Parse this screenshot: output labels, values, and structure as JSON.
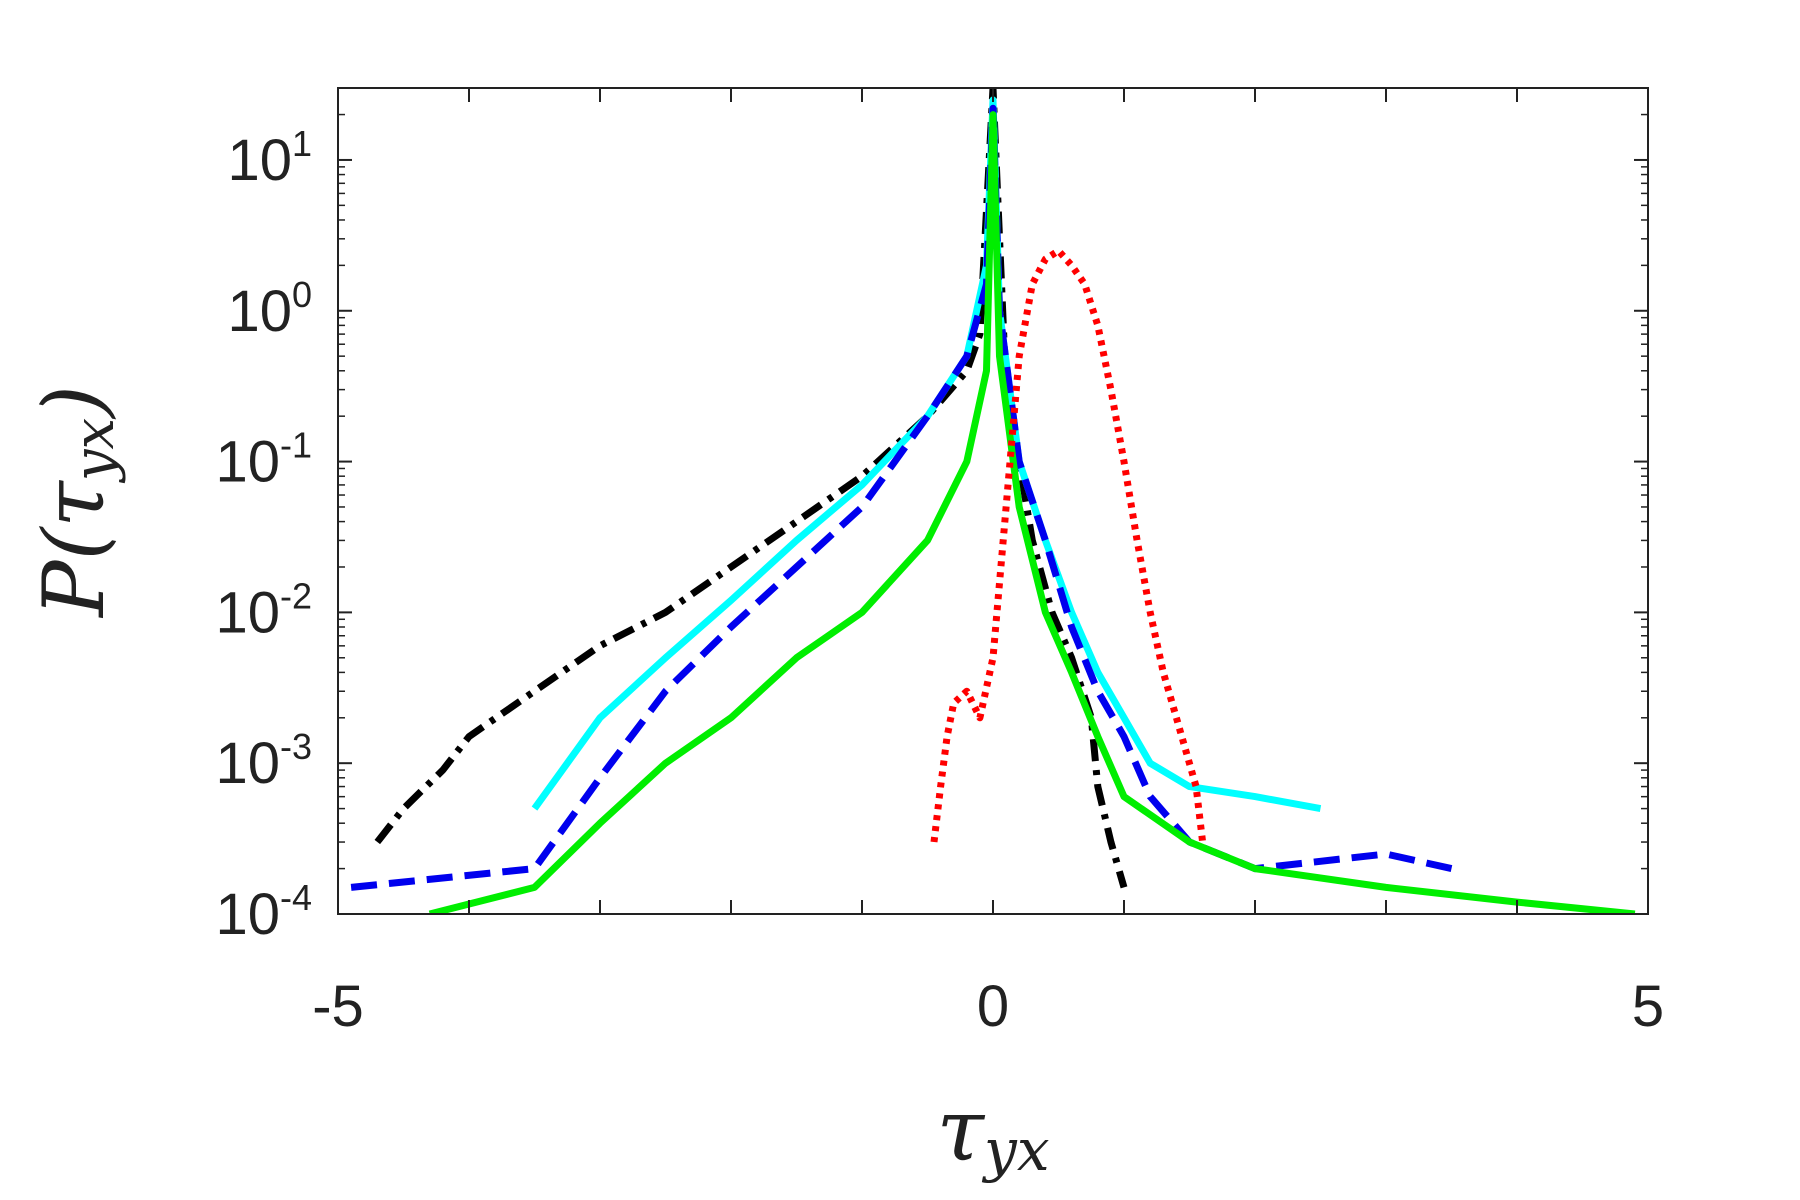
{
  "chart_data": {
    "type": "line",
    "title": "",
    "xlabel": "τ",
    "xlabel_sub": "yx",
    "ylabel": "P(τ",
    "ylabel_sub": "yx",
    "ylabel_close": ")",
    "x_scale": "linear",
    "y_scale": "log",
    "xlim": [
      -5,
      5
    ],
    "ylim": [
      0.0001,
      30
    ],
    "x_ticks": [
      {
        "value": -5,
        "label": "-5"
      },
      {
        "value": 0,
        "label": "0"
      },
      {
        "value": 5,
        "label": "5"
      }
    ],
    "y_ticks": [
      {
        "value": 0.0001,
        "base": "10",
        "exp": "-4"
      },
      {
        "value": 0.001,
        "base": "10",
        "exp": "-3"
      },
      {
        "value": 0.01,
        "base": "10",
        "exp": "-2"
      },
      {
        "value": 0.1,
        "base": "10",
        "exp": "-1"
      },
      {
        "value": 1,
        "base": "10",
        "exp": "0"
      },
      {
        "value": 10,
        "base": "10",
        "exp": "1"
      }
    ],
    "grid": false,
    "legend": "none",
    "series": [
      {
        "name": "black",
        "color": "#000000",
        "style": "dashdot",
        "x": [
          -4.7,
          -4.5,
          -4.2,
          -4.0,
          -3.5,
          -3.0,
          -2.5,
          -2.0,
          -1.5,
          -1.0,
          -0.5,
          -0.2,
          -0.1,
          0,
          0.1,
          0.2,
          0.3,
          0.45,
          0.6,
          0.75,
          0.8,
          0.9,
          1.0
        ],
        "y": [
          0.0003,
          0.0005,
          0.0009,
          0.0015,
          0.003,
          0.006,
          0.01,
          0.02,
          0.04,
          0.08,
          0.2,
          0.4,
          0.7,
          30,
          0.3,
          0.1,
          0.03,
          0.01,
          0.005,
          0.002,
          0.0007,
          0.0003,
          0.00015
        ]
      },
      {
        "name": "cyan",
        "color": "#00ffff",
        "style": "solid",
        "x": [
          -3.5,
          -3.0,
          -2.5,
          -2.0,
          -1.5,
          -1.0,
          -0.5,
          -0.2,
          -0.05,
          0,
          0.05,
          0.2,
          0.4,
          0.6,
          0.8,
          1.0,
          1.2,
          1.5,
          2.0,
          2.5
        ],
        "y": [
          0.0005,
          0.002,
          0.005,
          0.012,
          0.03,
          0.07,
          0.2,
          0.5,
          2.0,
          25,
          1.0,
          0.1,
          0.03,
          0.01,
          0.004,
          0.002,
          0.001,
          0.0007,
          0.0006,
          0.0005
        ]
      },
      {
        "name": "blue",
        "color": "#0000ee",
        "style": "dashed",
        "x": [
          -4.9,
          -3.5,
          -3.0,
          -2.5,
          -2.0,
          -1.5,
          -1.0,
          -0.5,
          -0.2,
          -0.05,
          0,
          0.05,
          0.2,
          0.4,
          0.6,
          0.8,
          1.0,
          1.2,
          1.5,
          2.0,
          3.0,
          3.5
        ],
        "y": [
          0.00015,
          0.0002,
          0.0008,
          0.003,
          0.008,
          0.02,
          0.05,
          0.2,
          0.5,
          1.5,
          22,
          1.0,
          0.1,
          0.03,
          0.008,
          0.003,
          0.0015,
          0.0006,
          0.0003,
          0.0002,
          0.00025,
          0.0002
        ]
      },
      {
        "name": "green",
        "color": "#00ee00",
        "style": "solid",
        "x": [
          -4.3,
          -3.5,
          -3.0,
          -2.5,
          -2.0,
          -1.5,
          -1.0,
          -0.5,
          -0.2,
          -0.05,
          0,
          0.05,
          0.2,
          0.4,
          0.6,
          0.8,
          1.0,
          1.5,
          2.0,
          3.0,
          4.0,
          4.9
        ],
        "y": [
          0.0001,
          0.00015,
          0.0004,
          0.001,
          0.002,
          0.005,
          0.01,
          0.03,
          0.1,
          0.4,
          20,
          0.5,
          0.05,
          0.01,
          0.004,
          0.0015,
          0.0006,
          0.0003,
          0.0002,
          0.00015,
          0.00012,
          0.0001
        ]
      },
      {
        "name": "red",
        "color": "#ff0000",
        "style": "dotted",
        "x": [
          -0.45,
          -0.4,
          -0.35,
          -0.3,
          -0.2,
          -0.1,
          0,
          0.1,
          0.2,
          0.3,
          0.4,
          0.5,
          0.6,
          0.7,
          0.8,
          0.9,
          1.0,
          1.1,
          1.2,
          1.3,
          1.4,
          1.55,
          1.6
        ],
        "y": [
          0.0003,
          0.0007,
          0.0015,
          0.0025,
          0.003,
          0.002,
          0.005,
          0.05,
          0.5,
          1.5,
          2.2,
          2.5,
          2.0,
          1.5,
          0.8,
          0.3,
          0.1,
          0.03,
          0.01,
          0.004,
          0.002,
          0.0007,
          0.0003
        ]
      }
    ]
  }
}
